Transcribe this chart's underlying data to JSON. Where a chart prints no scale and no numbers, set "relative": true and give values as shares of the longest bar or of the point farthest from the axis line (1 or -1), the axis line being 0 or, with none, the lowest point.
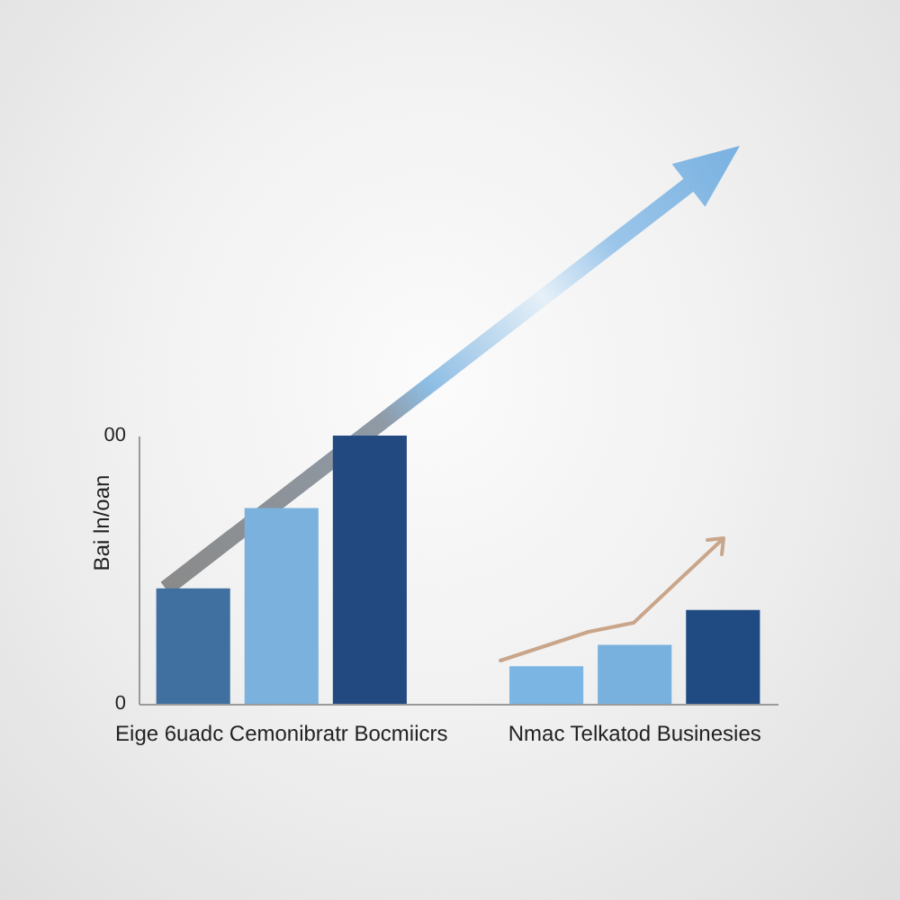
{
  "chart_data": {
    "type": "bar",
    "relative": true,
    "categories": [
      null,
      "Eige 6uadc Cemonibratr Bocmiicrs",
      null,
      null,
      null,
      "Nmac Telkatod Businesies",
      null
    ],
    "values": [
      0.43,
      0.73,
      1,
      null,
      0.14,
      0.22,
      0.35
    ],
    "colors": [
      "#40709f",
      "#7bb1dd",
      "#224a80",
      null,
      "#7bb5e3",
      "#78b1de",
      "#1f4a82"
    ],
    "ylabel": "Bai ln/oan",
    "annotations": [
      "00",
      "0"
    ]
  }
}
